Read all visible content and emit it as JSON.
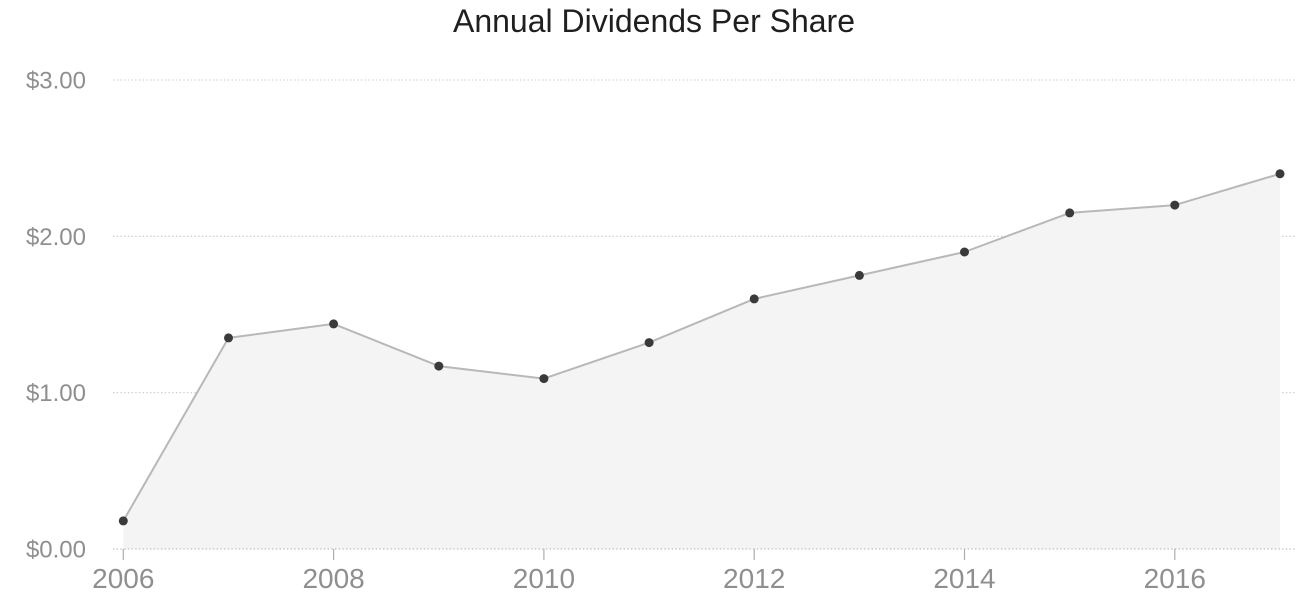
{
  "chart_data": {
    "type": "area",
    "title": "Annual Dividends Per Share",
    "x": [
      2006,
      2007,
      2008,
      2009,
      2010,
      2011,
      2012,
      2013,
      2014,
      2015,
      2016,
      2017
    ],
    "values": [
      0.18,
      1.35,
      1.44,
      1.17,
      1.09,
      1.32,
      1.6,
      1.75,
      1.9,
      2.15,
      2.2,
      2.4
    ],
    "xlabel": "",
    "ylabel": "",
    "ylim": [
      0,
      3
    ],
    "yticks": [
      {
        "value": 0,
        "label": "$0.00"
      },
      {
        "value": 1,
        "label": "$1.00"
      },
      {
        "value": 2,
        "label": "$2.00"
      },
      {
        "value": 3,
        "label": "$3.00"
      }
    ],
    "xtick_labels": [
      "2006",
      "2008",
      "2010",
      "2012",
      "2014",
      "2016"
    ],
    "grid": "horizontal-dotted",
    "legend_position": "none",
    "marker_shape": "circle",
    "colors": {
      "title": "#1f1f1f",
      "axis_label": "#8f8f8f",
      "gridline": "#c9c9c9",
      "axis_line": "#adadad",
      "line": "#b8b8b8",
      "area_fill": "#f4f4f4",
      "marker": "#3a3a3a"
    }
  }
}
